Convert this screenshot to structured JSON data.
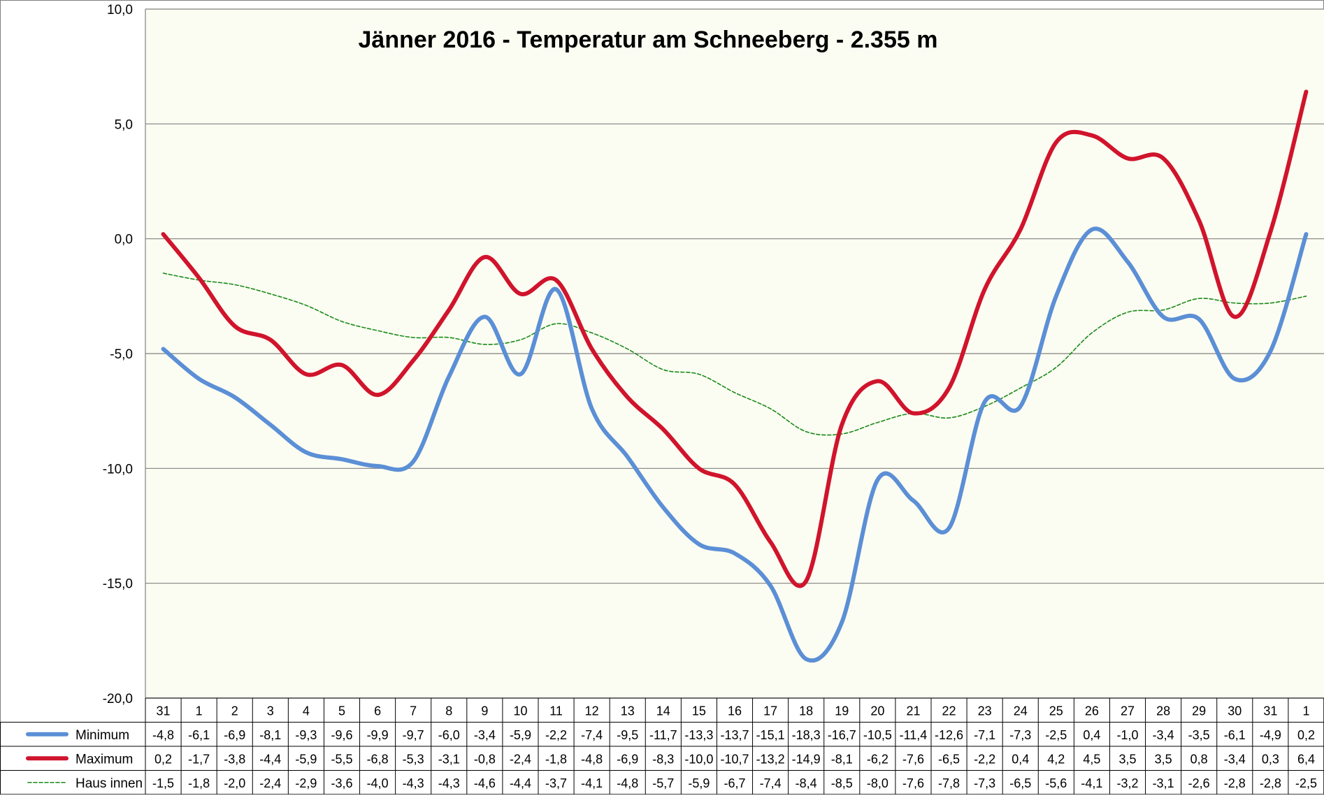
{
  "chart_data": {
    "type": "line",
    "title": "Jänner 2016 - Temperatur am Schneeberg - 2.355 m",
    "xlabel": "",
    "ylabel": "",
    "ylim": [
      -20,
      10
    ],
    "yticks": [
      "10,0",
      "5,0",
      "0,0",
      "-5,0",
      "-10,0",
      "-15,0",
      "-20,0"
    ],
    "ytick_values": [
      10,
      5,
      0,
      -5,
      -10,
      -15,
      -20
    ],
    "grid": true,
    "legend_placement": "data-table-left",
    "categories": [
      "31",
      "1",
      "2",
      "3",
      "4",
      "5",
      "6",
      "7",
      "8",
      "9",
      "10",
      "11",
      "12",
      "13",
      "14",
      "15",
      "16",
      "17",
      "18",
      "19",
      "20",
      "21",
      "22",
      "23",
      "24",
      "25",
      "26",
      "27",
      "28",
      "29",
      "30",
      "31",
      "1"
    ],
    "series": [
      {
        "name": "Minimum",
        "color": "#5b8fd6",
        "style": "solid-thick",
        "values": [
          -4.8,
          -6.1,
          -6.9,
          -8.1,
          -9.3,
          -9.6,
          -9.9,
          -9.7,
          -6.0,
          -3.4,
          -5.9,
          -2.2,
          -7.4,
          -9.5,
          -11.7,
          -13.3,
          -13.7,
          -15.1,
          -18.3,
          -16.7,
          -10.5,
          -11.4,
          -12.6,
          -7.1,
          -7.3,
          -2.5,
          0.4,
          -1.0,
          -3.4,
          -3.5,
          -6.1,
          -4.9,
          0.2
        ],
        "labels": [
          "-4,8",
          "-6,1",
          "-6,9",
          "-8,1",
          "-9,3",
          "-9,6",
          "-9,9",
          "-9,7",
          "-6,0",
          "-3,4",
          "-5,9",
          "-2,2",
          "-7,4",
          "-9,5",
          "-11,7",
          "-13,3",
          "-13,7",
          "-15,1",
          "-18,3",
          "-16,7",
          "-10,5",
          "-11,4",
          "-12,6",
          "-7,1",
          "-7,3",
          "-2,5",
          "0,4",
          "-1,0",
          "-3,4",
          "-3,5",
          "-6,1",
          "-4,9",
          "0,2"
        ]
      },
      {
        "name": "Maximum",
        "color": "#d0142c",
        "style": "solid-thick",
        "values": [
          0.2,
          -1.7,
          -3.8,
          -4.4,
          -5.9,
          -5.5,
          -6.8,
          -5.3,
          -3.1,
          -0.8,
          -2.4,
          -1.8,
          -4.8,
          -6.9,
          -8.3,
          -10.0,
          -10.7,
          -13.2,
          -14.9,
          -8.1,
          -6.2,
          -7.6,
          -6.5,
          -2.2,
          0.4,
          4.2,
          4.5,
          3.5,
          3.5,
          0.8,
          -3.4,
          0.3,
          6.4
        ],
        "labels": [
          "0,2",
          "-1,7",
          "-3,8",
          "-4,4",
          "-5,9",
          "-5,5",
          "-6,8",
          "-5,3",
          "-3,1",
          "-0,8",
          "-2,4",
          "-1,8",
          "-4,8",
          "-6,9",
          "-8,3",
          "-10,0",
          "-10,7",
          "-13,2",
          "-14,9",
          "-8,1",
          "-6,2",
          "-7,6",
          "-6,5",
          "-2,2",
          "0,4",
          "4,2",
          "4,5",
          "3,5",
          "3,5",
          "0,8",
          "-3,4",
          "0,3",
          "6,4"
        ]
      },
      {
        "name": "Haus innen",
        "color": "#1a8a1a",
        "style": "dashed-thin",
        "values": [
          -1.5,
          -1.8,
          -2.0,
          -2.4,
          -2.9,
          -3.6,
          -4.0,
          -4.3,
          -4.3,
          -4.6,
          -4.4,
          -3.7,
          -4.1,
          -4.8,
          -5.7,
          -5.9,
          -6.7,
          -7.4,
          -8.4,
          -8.5,
          -8.0,
          -7.6,
          -7.8,
          -7.3,
          -6.5,
          -5.6,
          -4.1,
          -3.2,
          -3.1,
          -2.6,
          -2.8,
          -2.8,
          -2.5
        ],
        "labels": [
          "-1,5",
          "-1,8",
          "-2,0",
          "-2,4",
          "-2,9",
          "-3,6",
          "-4,0",
          "-4,3",
          "-4,3",
          "-4,6",
          "-4,4",
          "-3,7",
          "-4,1",
          "-4,8",
          "-5,7",
          "-5,9",
          "-6,7",
          "-7,4",
          "-8,4",
          "-8,5",
          "-8,0",
          "-7,6",
          "-7,8",
          "-7,3",
          "-6,5",
          "-5,6",
          "-4,1",
          "-3,2",
          "-3,1",
          "-2,6",
          "-2,8",
          "-2,8",
          "-2,5"
        ]
      }
    ],
    "plot_background": "#fcfdf2",
    "grid_color": "#808080"
  }
}
